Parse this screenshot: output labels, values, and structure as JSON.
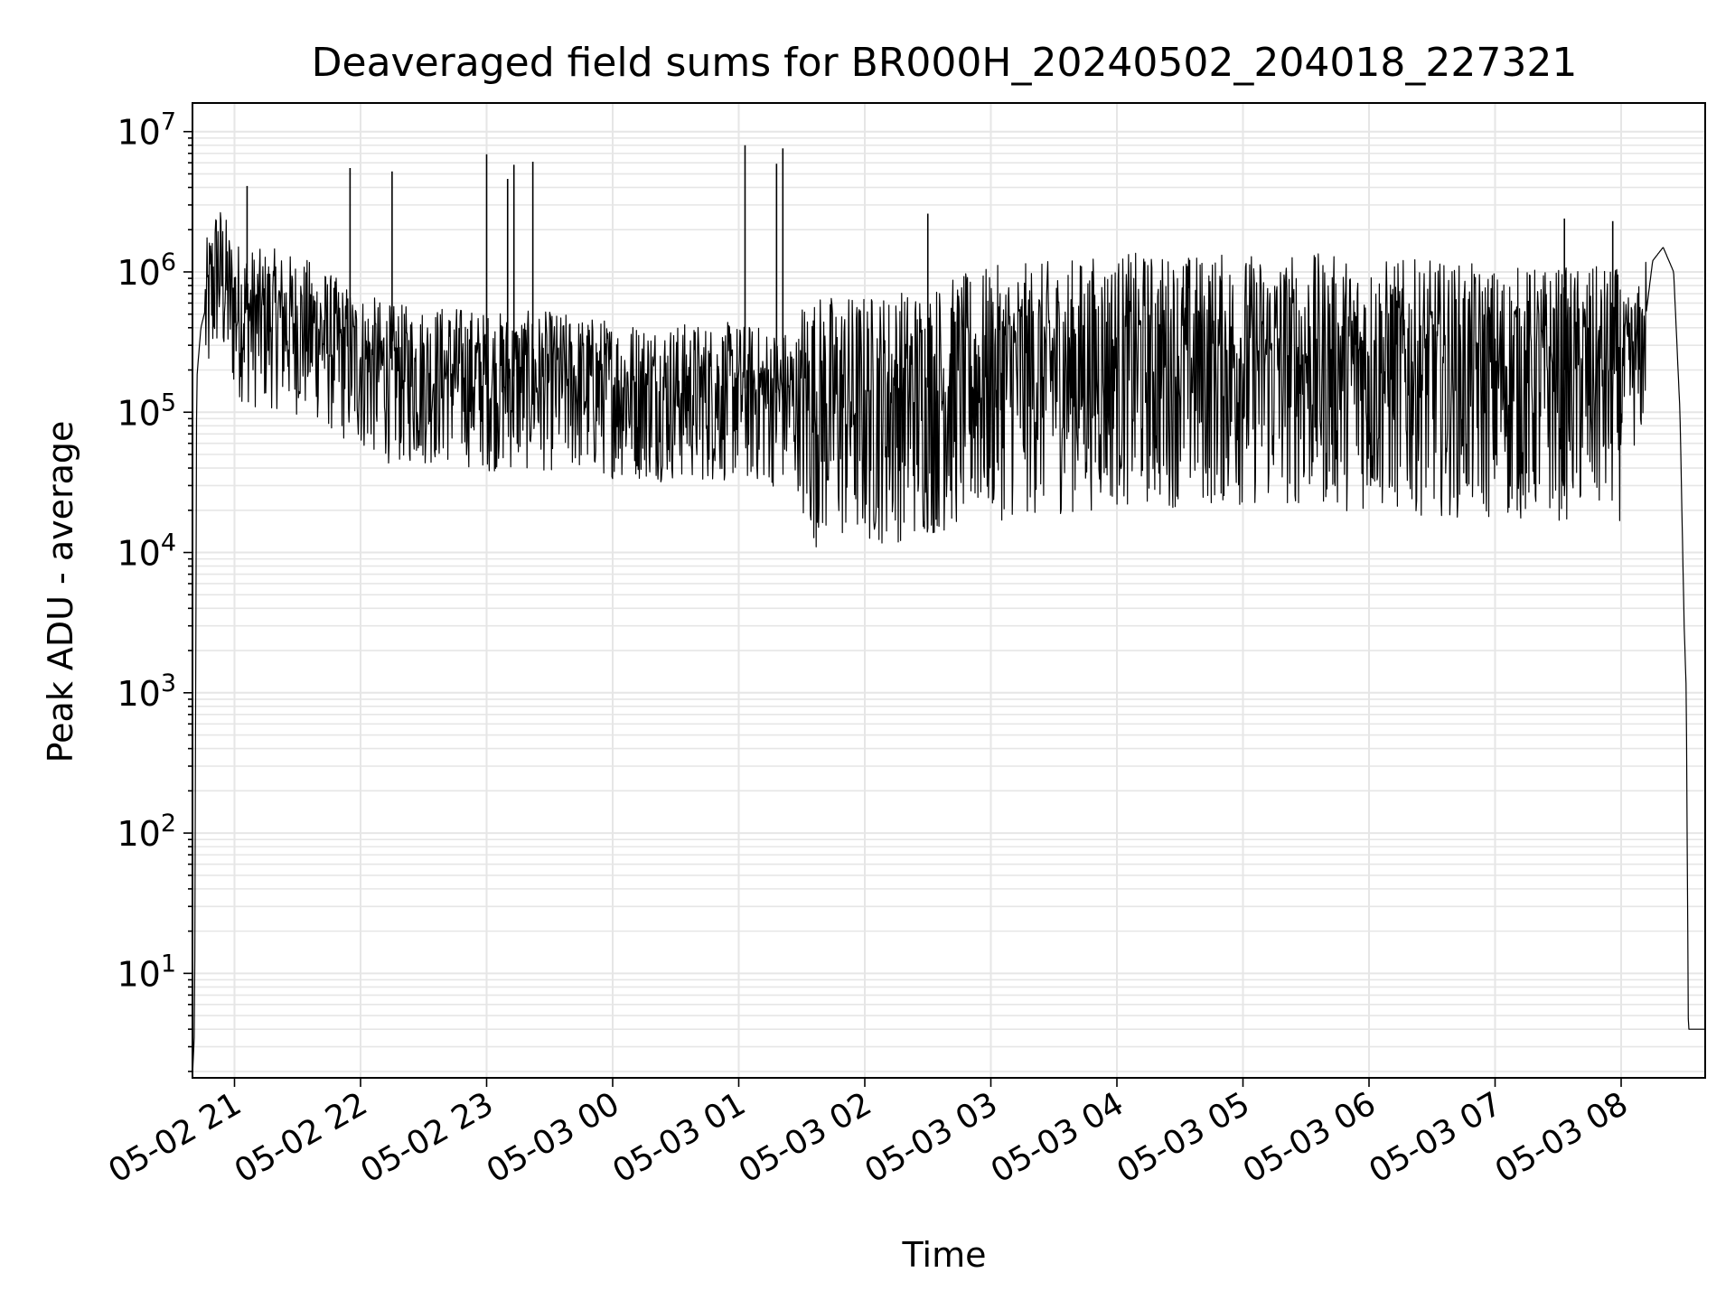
{
  "chart_data": {
    "type": "line",
    "title": "Deaveraged field sums for BR000H_20240502_204018_227321",
    "xlabel": "Time",
    "ylabel": "Peak ADU - average",
    "yscale": "log",
    "ylim": [
      1.8,
      16000000.0
    ],
    "xlim": [
      "2024-05-02 20:40:00",
      "2024-05-03 08:40:00"
    ],
    "grid": true,
    "legend": "none",
    "line_color": "#000000",
    "grid_color": "#e6e6e6",
    "x_ticks": [
      {
        "time": "2024-05-02 21:00",
        "label": "05-02 21"
      },
      {
        "time": "2024-05-02 22:00",
        "label": "05-02 22"
      },
      {
        "time": "2024-05-02 23:00",
        "label": "05-02 23"
      },
      {
        "time": "2024-05-03 00:00",
        "label": "05-03 00"
      },
      {
        "time": "2024-05-03 01:00",
        "label": "05-03 01"
      },
      {
        "time": "2024-05-03 02:00",
        "label": "05-03 02"
      },
      {
        "time": "2024-05-03 03:00",
        "label": "05-03 03"
      },
      {
        "time": "2024-05-03 04:00",
        "label": "05-03 04"
      },
      {
        "time": "2024-05-03 05:00",
        "label": "05-03 05"
      },
      {
        "time": "2024-05-03 06:00",
        "label": "05-03 06"
      },
      {
        "time": "2024-05-03 07:00",
        "label": "05-03 07"
      },
      {
        "time": "2024-05-03 08:00",
        "label": "05-03 08"
      }
    ],
    "y_ticks": [
      {
        "value": 10,
        "base": "10",
        "exp": "1"
      },
      {
        "value": 100,
        "base": "10",
        "exp": "2"
      },
      {
        "value": 1000,
        "base": "10",
        "exp": "3"
      },
      {
        "value": 10000,
        "base": "10",
        "exp": "4"
      },
      {
        "value": 100000,
        "base": "10",
        "exp": "5"
      },
      {
        "value": 1000000,
        "base": "10",
        "exp": "6"
      },
      {
        "value": 10000000,
        "base": "10",
        "exp": "7"
      }
    ],
    "series": [
      {
        "points": [
          [
            "2024-05-02 20:40",
            1.8
          ],
          [
            "2024-05-02 20:41",
            4
          ],
          [
            "2024-05-02 20:42",
            170000.0
          ],
          [
            "2024-05-02 20:44",
            400000.0
          ],
          [
            "2024-05-02 20:48",
            700000.0
          ],
          [
            "2024-05-02 20:52",
            1200000.0
          ],
          [
            "2024-05-02 21:00",
            600000.0
          ],
          [
            "2024-05-02 21:10",
            500000.0
          ],
          [
            "2024-05-02 21:20",
            500000.0
          ],
          [
            "2024-05-02 21:30",
            450000.0
          ],
          [
            "2024-05-02 21:40",
            400000.0
          ],
          [
            "2024-05-02 21:50",
            300000.0
          ],
          [
            "2024-05-02 22:00",
            250000.0
          ],
          [
            "2024-05-02 22:15",
            200000.0
          ],
          [
            "2024-05-02 22:30",
            200000.0
          ],
          [
            "2024-05-02 22:45",
            200000.0
          ],
          [
            "2024-05-02 23:00",
            180000.0
          ],
          [
            "2024-05-02 23:30",
            180000.0
          ],
          [
            "2024-05-03 00:00",
            160000.0
          ],
          [
            "2024-05-03 00:30",
            150000.0
          ],
          [
            "2024-05-03 01:00",
            150000.0
          ],
          [
            "2024-05-03 01:30",
            130000.0
          ],
          [
            "2024-05-03 02:00",
            130000.0
          ],
          [
            "2024-05-03 02:30",
            150000.0
          ],
          [
            "2024-05-03 03:00",
            200000.0
          ],
          [
            "2024-05-03 03:30",
            220000.0
          ],
          [
            "2024-05-03 04:00",
            250000.0
          ],
          [
            "2024-05-03 04:30",
            250000.0
          ],
          [
            "2024-05-03 05:00",
            250000.0
          ],
          [
            "2024-05-03 05:30",
            250000.0
          ],
          [
            "2024-05-03 06:00",
            230000.0
          ],
          [
            "2024-05-03 06:30",
            220000.0
          ],
          [
            "2024-05-03 07:00",
            200000.0
          ],
          [
            "2024-05-03 07:30",
            200000.0
          ],
          [
            "2024-05-03 08:00",
            200000.0
          ],
          [
            "2024-05-03 08:10",
            300000.0
          ],
          [
            "2024-05-03 08:15",
            1200000.0
          ],
          [
            "2024-05-03 08:20",
            1500000.0
          ],
          [
            "2024-05-03 08:25",
            1000000.0
          ],
          [
            "2024-05-03 08:28",
            100000.0
          ],
          [
            "2024-05-03 08:30",
            3000.0
          ],
          [
            "2024-05-03 08:31",
            1000.0
          ],
          [
            "2024-05-03 08:32",
            4
          ],
          [
            "2024-05-03 08:40",
            4
          ]
        ],
        "spikes": [
          [
            "2024-05-02 21:06",
            4100000.0
          ],
          [
            "2024-05-02 21:55",
            5500000.0
          ],
          [
            "2024-05-02 22:15",
            5200000.0
          ],
          [
            "2024-05-02 23:00",
            6900000.0
          ],
          [
            "2024-05-02 23:10",
            4600000.0
          ],
          [
            "2024-05-02 23:13",
            5800000.0
          ],
          [
            "2024-05-02 23:22",
            6100000.0
          ],
          [
            "2024-05-03 01:03",
            8000000.0
          ],
          [
            "2024-05-03 01:18",
            5900000.0
          ],
          [
            "2024-05-03 01:21",
            7600000.0
          ],
          [
            "2024-05-03 02:30",
            2600000.0
          ],
          [
            "2024-05-03 07:33",
            2400000.0
          ],
          [
            "2024-05-03 07:56",
            2300000.0
          ]
        ]
      }
    ]
  }
}
